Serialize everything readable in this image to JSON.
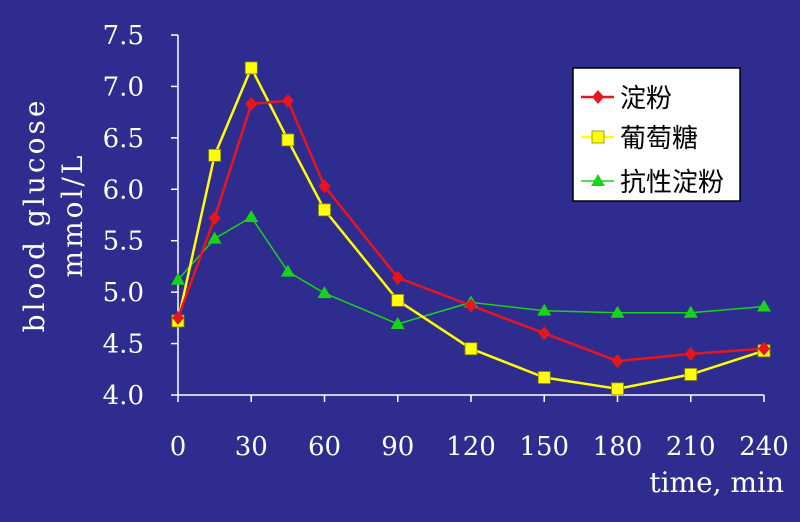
{
  "colors": {
    "background": "#2e2d8f",
    "axis": "#ffffff",
    "text": "#ffffff",
    "legend_bg": "#ffffff",
    "legend_text": "#000000"
  },
  "chart_data": {
    "type": "line",
    "title": "",
    "xlabel": "time, min",
    "ylabel": [
      "blood glucose",
      "mmol/L"
    ],
    "xlim": [
      0,
      240
    ],
    "ylim": [
      4.0,
      7.5
    ],
    "xticks": [
      "0",
      "30",
      "60",
      "90",
      "120",
      "150",
      "180",
      "210",
      "240"
    ],
    "yticks": [
      "4.0",
      "4.5",
      "5.0",
      "5.5",
      "6.0",
      "6.5",
      "7.0",
      "7.5"
    ],
    "grid": false,
    "legend_position": "top-right",
    "series": [
      {
        "name": "淀粉",
        "color": "#e8141e",
        "marker": "diamond",
        "x": [
          0,
          15,
          30,
          45,
          60,
          90,
          120,
          150,
          180,
          210,
          240
        ],
        "y": [
          4.75,
          5.72,
          6.83,
          6.86,
          6.03,
          5.14,
          4.87,
          4.6,
          4.33,
          4.4,
          4.45
        ]
      },
      {
        "name": "葡萄糖",
        "color": "#ffff00",
        "marker": "square",
        "x": [
          0,
          15,
          30,
          45,
          60,
          90,
          120,
          150,
          180,
          210,
          240
        ],
        "y": [
          4.72,
          6.33,
          7.18,
          6.48,
          5.8,
          4.92,
          4.45,
          4.17,
          4.06,
          4.2,
          4.43
        ]
      },
      {
        "name": "抗性淀粉",
        "color": "#19d219",
        "marker": "triangle",
        "x": [
          0,
          15,
          30,
          45,
          60,
          90,
          120,
          150,
          180,
          210,
          240
        ],
        "y": [
          5.12,
          5.52,
          5.73,
          5.2,
          4.99,
          4.69,
          4.9,
          4.82,
          4.8,
          4.8,
          4.86
        ]
      }
    ]
  }
}
